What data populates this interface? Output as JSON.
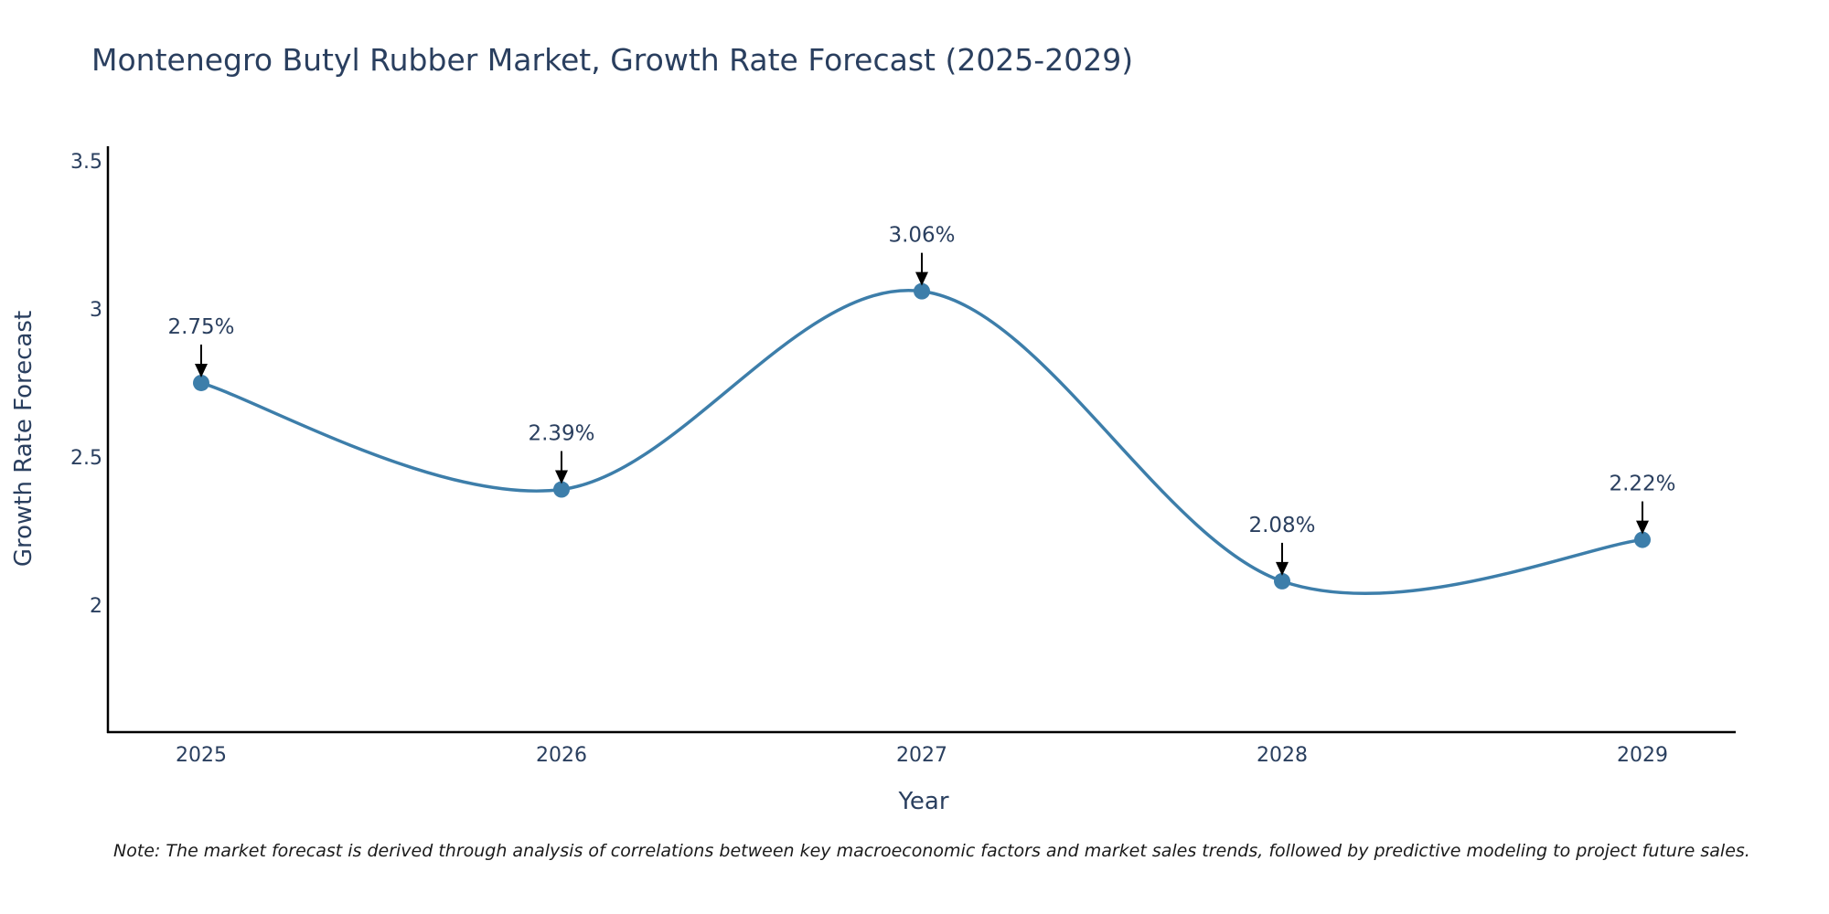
{
  "chart_data": {
    "type": "line",
    "title": "Montenegro Butyl Rubber Market, Growth Rate Forecast (2025-2029)",
    "xlabel": "Year",
    "ylabel": "Growth Rate Forecast",
    "categories": [
      "2025",
      "2026",
      "2027",
      "2028",
      "2029"
    ],
    "x_ticks": [
      "2025",
      "2026",
      "2027",
      "2028",
      "2029"
    ],
    "y_ticks": [
      "2",
      "2.5",
      "3",
      "3.5"
    ],
    "ylim": [
      1.57,
      3.55
    ],
    "series": [
      {
        "name": "Growth Rate Forecast",
        "values": [
          2.75,
          2.39,
          3.06,
          2.08,
          2.22
        ],
        "labels": [
          "2.75%",
          "2.39%",
          "3.06%",
          "2.08%",
          "2.22%"
        ],
        "color": "#3d7eaa"
      }
    ],
    "grid": false,
    "note": "Note: The market forecast is derived through analysis of correlations between key macroeconomic factors and market sales trends, followed by predictive modeling to project future sales."
  }
}
